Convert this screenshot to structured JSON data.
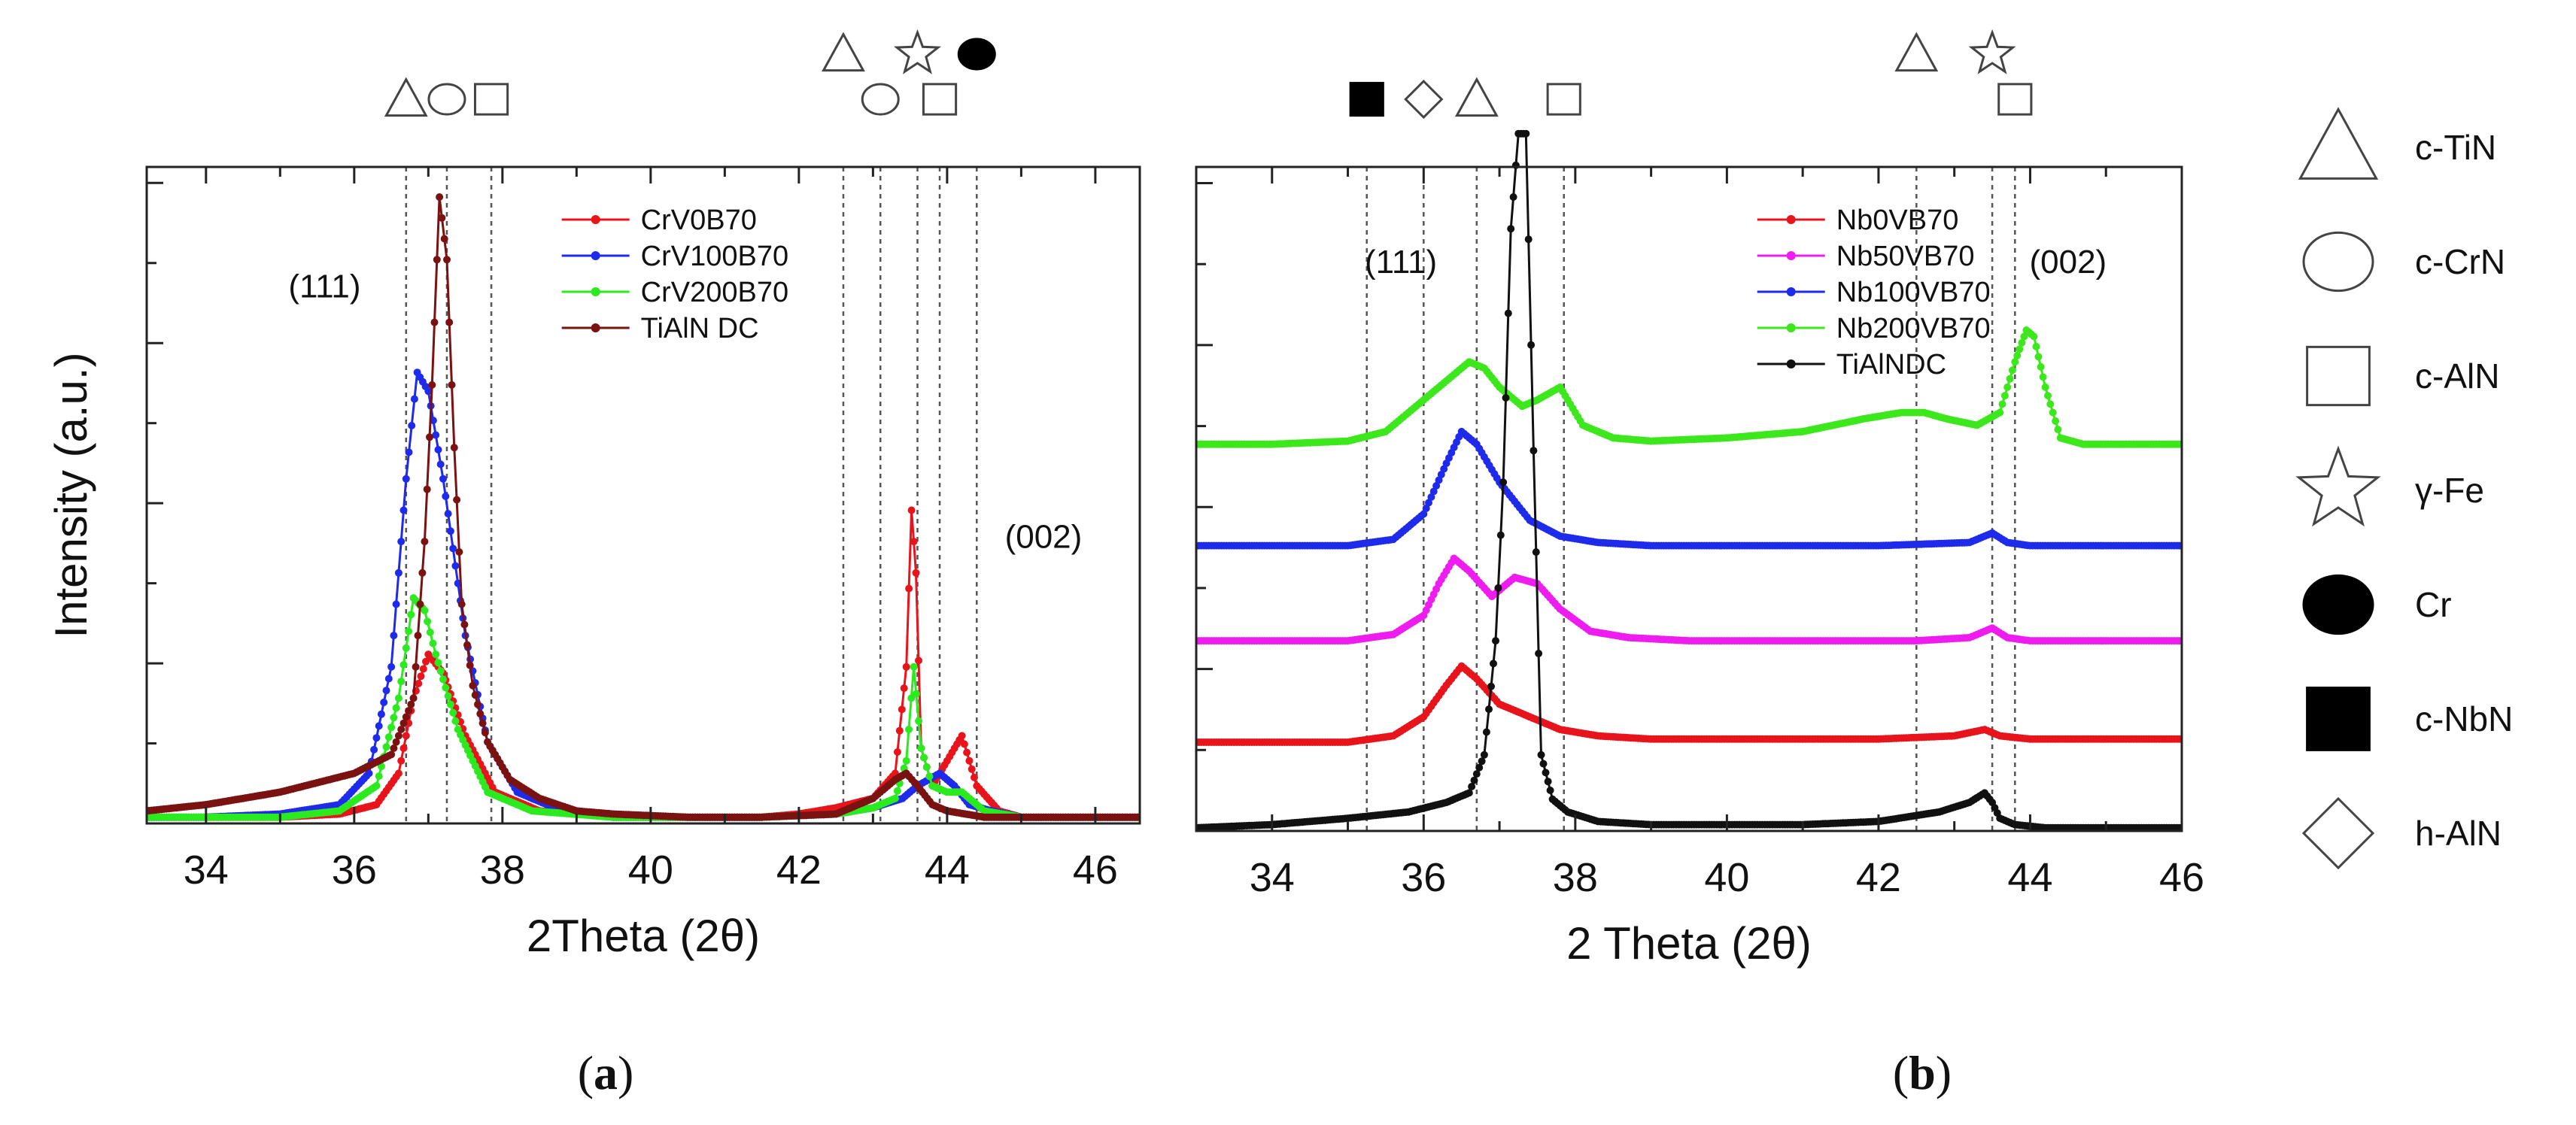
{
  "chart_data": [
    {
      "type": "line",
      "panel_label_open": "(",
      "panel_label_letter": "a",
      "panel_label_close": ")",
      "xlabel": "2Theta (2θ)",
      "ylabel": "Intensity (a.u.)",
      "xlim": [
        33.2,
        46.6
      ],
      "ylim": [
        0,
        100
      ],
      "xticks": [
        34,
        36,
        38,
        40,
        42,
        44,
        46
      ],
      "legend_position": "top-center",
      "annotations": [
        {
          "text": "(111)",
          "x": 35.6,
          "y": 84
        },
        {
          "text": "(002)",
          "x": 45.3,
          "y": 44
        }
      ],
      "reference_lines": [
        {
          "x": 36.7,
          "symbol": "triangle"
        },
        {
          "x": 37.25,
          "symbol": "circle"
        },
        {
          "x": 37.85,
          "symbol": "square"
        },
        {
          "x": 42.6,
          "symbol": "triangle"
        },
        {
          "x": 43.1,
          "symbol": "circle"
        },
        {
          "x": 43.6,
          "symbol": "star"
        },
        {
          "x": 43.9,
          "symbol": "square"
        },
        {
          "x": 44.4,
          "symbol": "filled-circle"
        }
      ],
      "series": [
        {
          "name": "CrV0B70",
          "color": "#e8141c",
          "x": [
            33.2,
            34,
            35,
            35.8,
            36.3,
            36.6,
            36.8,
            37.0,
            37.2,
            37.5,
            37.9,
            38.5,
            39.5,
            40.5,
            41.5,
            42.0,
            42.5,
            43.0,
            43.3,
            43.45,
            43.52,
            43.58,
            43.65,
            43.8,
            44.0,
            44.2,
            44.4,
            44.7,
            45.0,
            45.5,
            46.0,
            46.6
          ],
          "y": [
            1,
            1,
            1,
            1.5,
            3,
            8,
            20,
            27,
            24,
            14,
            5,
            2,
            1,
            1,
            1,
            1.5,
            2.5,
            4,
            8,
            25,
            50,
            40,
            12,
            6,
            10,
            14,
            6,
            2,
            1,
            1,
            1,
            1
          ]
        },
        {
          "name": "CrV100B70",
          "color": "#1f2bea",
          "x": [
            33.2,
            34,
            35,
            35.8,
            36.2,
            36.5,
            36.7,
            36.85,
            37.0,
            37.2,
            37.5,
            37.8,
            38.2,
            38.8,
            39.5,
            40.5,
            41.5,
            42.5,
            43.0,
            43.4,
            43.6,
            43.75,
            43.9,
            44.1,
            44.3,
            44.6,
            45.0,
            46.0,
            46.6
          ],
          "y": [
            1,
            1,
            1.5,
            3,
            8,
            25,
            55,
            72,
            69,
            55,
            30,
            13,
            5,
            2,
            1,
            1,
            1,
            1.5,
            2.5,
            4,
            6,
            7,
            8,
            6,
            3,
            2,
            1,
            1,
            1
          ]
        },
        {
          "name": "CrV200B70",
          "color": "#2bea1f",
          "x": [
            33.2,
            34,
            35,
            35.8,
            36.3,
            36.6,
            36.8,
            36.95,
            37.1,
            37.4,
            37.8,
            38.4,
            39.5,
            40.5,
            41.5,
            42.5,
            43.0,
            43.3,
            43.45,
            43.55,
            43.65,
            43.8,
            44.0,
            44.2,
            44.5,
            45.0,
            46.0,
            46.6
          ],
          "y": [
            1,
            1,
            1,
            2,
            6,
            20,
            36,
            34,
            27,
            15,
            5,
            2,
            1,
            1,
            1,
            1.5,
            2.5,
            4,
            10,
            25,
            12,
            6,
            5,
            5,
            2,
            1,
            1,
            1
          ]
        },
        {
          "name": "TiAlN DC",
          "color": "#7a1212",
          "x": [
            33.2,
            34,
            35,
            36.0,
            36.5,
            36.8,
            36.95,
            37.05,
            37.15,
            37.25,
            37.35,
            37.45,
            37.6,
            37.8,
            38.1,
            38.5,
            39.0,
            39.5,
            40.5,
            41.5,
            42.5,
            43.0,
            43.3,
            43.45,
            43.6,
            43.8,
            44.0,
            44.5,
            45.0,
            46.0,
            46.6
          ],
          "y": [
            2,
            3,
            5,
            8,
            11,
            20,
            45,
            70,
            100,
            90,
            60,
            35,
            22,
            13,
            7,
            4,
            2,
            1.5,
            1,
            1,
            1.5,
            4,
            7,
            8,
            6,
            3,
            2,
            1,
            1,
            1,
            1
          ]
        }
      ]
    },
    {
      "type": "line",
      "panel_label_open": "(",
      "panel_label_letter": "b",
      "panel_label_close": ")",
      "xlabel": "2 Theta (2θ)",
      "ylabel": "",
      "xlim": [
        33,
        46
      ],
      "ylim": [
        0,
        100
      ],
      "xticks": [
        34,
        36,
        38,
        40,
        42,
        44,
        46
      ],
      "legend_position": "top-center",
      "annotations": [
        {
          "text": "(111)",
          "x": 35.7,
          "y": 88
        },
        {
          "text": "(002)",
          "x": 44.5,
          "y": 88
        }
      ],
      "reference_lines": [
        {
          "x": 35.25,
          "symbol": "filled-square"
        },
        {
          "x": 36.0,
          "symbol": "diamond"
        },
        {
          "x": 36.7,
          "symbol": "triangle"
        },
        {
          "x": 37.85,
          "symbol": "square"
        },
        {
          "x": 42.5,
          "symbol": "triangle"
        },
        {
          "x": 43.5,
          "symbol": "star"
        },
        {
          "x": 43.8,
          "symbol": "square"
        }
      ],
      "series": [
        {
          "name": "Nb0VB70",
          "color": "#e8141c",
          "x": [
            33,
            34,
            35,
            35.6,
            36.0,
            36.3,
            36.5,
            36.7,
            37.0,
            37.4,
            37.8,
            38.3,
            39,
            40,
            41,
            42,
            43.0,
            43.4,
            43.6,
            44,
            45,
            46
          ],
          "y": [
            14,
            14,
            14,
            15,
            18,
            23,
            26,
            24,
            20,
            18,
            16,
            15,
            14.5,
            14.5,
            14.5,
            14.5,
            15,
            16,
            15,
            14.5,
            14.5,
            14.5
          ]
        },
        {
          "name": "Nb50VB70",
          "color": "#ee1cee",
          "x": [
            33,
            34,
            35,
            35.6,
            36.0,
            36.2,
            36.4,
            36.6,
            36.9,
            37.2,
            37.5,
            37.8,
            38.2,
            38.7,
            39.5,
            40.5,
            41.5,
            42.5,
            43.2,
            43.5,
            43.7,
            44,
            45,
            46
          ],
          "y": [
            30,
            30,
            30,
            31,
            34,
            39,
            43,
            41,
            37,
            40,
            39,
            35,
            31.5,
            30.5,
            30,
            30,
            30,
            30,
            30.5,
            32,
            30.5,
            30,
            30,
            30
          ]
        },
        {
          "name": "Nb100VB70",
          "color": "#1f2bea",
          "x": [
            33,
            34,
            35,
            35.6,
            36.0,
            36.3,
            36.5,
            36.7,
            37.0,
            37.4,
            37.8,
            38.3,
            39,
            40,
            41,
            42,
            43.2,
            43.5,
            43.7,
            44,
            45,
            46
          ],
          "y": [
            45,
            45,
            45,
            46,
            50,
            58,
            63,
            61,
            55,
            49,
            46.5,
            45.5,
            45,
            45,
            45,
            45,
            45.5,
            47,
            45.5,
            45,
            45,
            45
          ]
        },
        {
          "name": "Nb200VB70",
          "color": "#3ce81c",
          "x": [
            33,
            34,
            35,
            35.5,
            35.9,
            36.3,
            36.6,
            36.8,
            37.0,
            37.3,
            37.5,
            37.8,
            38.1,
            38.5,
            39.0,
            40.0,
            41.0,
            41.8,
            42.3,
            42.6,
            42.9,
            43.3,
            43.6,
            43.8,
            43.95,
            44.05,
            44.2,
            44.4,
            44.7,
            45.0,
            46
          ],
          "y": [
            61,
            61,
            61.5,
            63,
            67,
            71,
            74,
            73,
            70,
            67,
            68,
            70,
            64,
            62,
            61.5,
            62,
            63,
            65,
            66,
            66,
            65,
            64,
            66,
            74,
            79,
            78,
            70,
            62,
            61,
            61,
            61
          ]
        },
        {
          "name": "TiAlNDC",
          "color": "#111111",
          "x": [
            33,
            34,
            35,
            35.8,
            36.3,
            36.6,
            36.8,
            36.95,
            37.05,
            37.15,
            37.25,
            37.35,
            37.45,
            37.55,
            37.7,
            37.9,
            38.3,
            39,
            40,
            41,
            42,
            42.8,
            43.2,
            43.4,
            43.5,
            43.6,
            43.8,
            44.2,
            45,
            46
          ],
          "y": [
            0.5,
            1,
            2,
            3,
            4.5,
            6,
            12,
            30,
            55,
            95,
            110,
            110,
            60,
            12,
            5,
            3,
            1.5,
            1,
            1,
            1,
            1.5,
            3,
            4.5,
            6,
            4.5,
            2,
            1,
            0.5,
            0.5,
            0.5
          ]
        }
      ]
    }
  ],
  "phase_key": [
    {
      "symbol": "triangle",
      "label": "c-TiN"
    },
    {
      "symbol": "circle",
      "label": "c-CrN"
    },
    {
      "symbol": "square",
      "label": "c-AlN"
    },
    {
      "symbol": "star",
      "label": "γ-Fe"
    },
    {
      "symbol": "filled-circle",
      "label": "Cr"
    },
    {
      "symbol": "filled-square",
      "label": "c-NbN"
    },
    {
      "symbol": "diamond",
      "label": "h-AlN"
    }
  ]
}
